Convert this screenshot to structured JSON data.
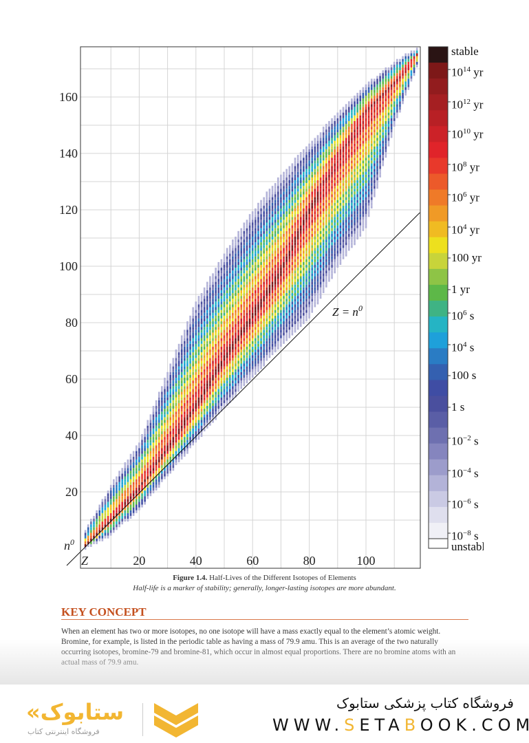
{
  "chart_data": {
    "type": "heatmap",
    "title": "Half-Lives of the Different Isotopes of Elements",
    "xlabel": "Z",
    "ylabel": "n0",
    "xlim": [
      0,
      119
    ],
    "ylim": [
      0,
      178
    ],
    "x_ticks": [
      "Z",
      "20",
      "40",
      "60",
      "80",
      "100"
    ],
    "x_tick_values": [
      0,
      20,
      40,
      60,
      80,
      100
    ],
    "y_ticks": [
      "n0",
      "20",
      "40",
      "60",
      "80",
      "100",
      "120",
      "140",
      "160"
    ],
    "y_tick_values": [
      0,
      20,
      40,
      60,
      80,
      100,
      120,
      140,
      160
    ],
    "grid": true,
    "annotation": {
      "text": "Z = n",
      "sup": "0",
      "line": "N = Z"
    },
    "band": {
      "Z": [
        1,
        10,
        20,
        30,
        40,
        50,
        60,
        70,
        80,
        90,
        100,
        110,
        118
      ],
      "N_min": [
        0,
        5,
        14,
        26,
        38,
        50,
        61,
        72,
        82,
        100,
        114,
        150,
        171
      ],
      "N_max": [
        6,
        22,
        37,
        62,
        87,
        104,
        119,
        132,
        143,
        154,
        164,
        172,
        177
      ],
      "N_stable": [
        1,
        10,
        21,
        35,
        50,
        67,
        82,
        98,
        120,
        138,
        155,
        165,
        175
      ]
    },
    "colorbar": {
      "labels": [
        {
          "base": "stable",
          "exp": "",
          "unit": ""
        },
        {
          "base": "10",
          "exp": "14",
          "unit": " yr"
        },
        {
          "base": "10",
          "exp": "12",
          "unit": " yr"
        },
        {
          "base": "10",
          "exp": "10",
          "unit": " yr"
        },
        {
          "base": "10",
          "exp": "8",
          "unit": " yr"
        },
        {
          "base": "10",
          "exp": "6",
          "unit": " yr"
        },
        {
          "base": "10",
          "exp": "4",
          "unit": " yr"
        },
        {
          "base": "100",
          "exp": "",
          "unit": " yr"
        },
        {
          "base": "1",
          "exp": "",
          "unit": " yr"
        },
        {
          "base": "10",
          "exp": "6",
          "unit": " s"
        },
        {
          "base": "10",
          "exp": "4",
          "unit": " s"
        },
        {
          "base": "100",
          "exp": "",
          "unit": " s"
        },
        {
          "base": "1",
          "exp": "",
          "unit": " s"
        },
        {
          "base": "10",
          "exp": "−2",
          "unit": " s"
        },
        {
          "base": "10",
          "exp": "−4",
          "unit": " s"
        },
        {
          "base": "10",
          "exp": "−6",
          "unit": " s"
        },
        {
          "base": "10",
          "exp": "−8",
          "unit": " s"
        },
        {
          "base": "unstable",
          "exp": "",
          "unit": ""
        }
      ],
      "colors": [
        "#2a1414",
        "#7d1818",
        "#921c1e",
        "#a51f22",
        "#b82025",
        "#cc2228",
        "#e0242a",
        "#e8392b",
        "#ec5a2a",
        "#ef7a28",
        "#f09a26",
        "#f0bb22",
        "#ede01e",
        "#c8d43a",
        "#8ec446",
        "#5db848",
        "#3fb384",
        "#25b4c4",
        "#1ea0da",
        "#2a7cc4",
        "#3460b0",
        "#3f4da4",
        "#4a4f9e",
        "#5a5ea6",
        "#6e70b0",
        "#8585be",
        "#9c9ccb",
        "#b3b3d8",
        "#cacae4",
        "#dfdfee",
        "#f0f0f6",
        "#ffffff"
      ]
    }
  },
  "caption": {
    "figure_label": "Figure 1.4.",
    "title": " Half-Lives of the Different Isotopes of Elements",
    "subtitle": "Half-life is a marker of stability; generally, longer-lasting isotopes are more abundant."
  },
  "key_concept": {
    "heading": "KEY CONCEPT",
    "body": "When an element has two or more isotopes, no one isotope will have a mass exactly equal to the element’s atomic weight. Bromine, for example, is listed in the periodic table as having a mass of 79.9 amu. This is an average of the two naturally occurring isotopes, bromine-79 and bromine-81, which occur in almost equal proportions. There are no bromine atoms with an actual mass of 79.9 amu."
  },
  "footer": {
    "store_name_fa": "فروشگاه کتاب پزشکی ستابوک",
    "url_parts": [
      "WWW.",
      "S",
      "ETA",
      "B",
      "OOK.COM"
    ],
    "logo_text": "«ستابوک",
    "logo_sub": "فروشگاه اینترنتی کتاب",
    "accent": "#f2b632"
  }
}
